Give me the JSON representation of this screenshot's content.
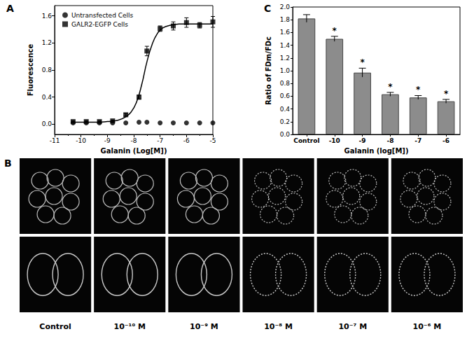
{
  "chart_data": [
    {
      "type": "scatter",
      "title": "A",
      "x_label": "Galanin (Log[M])",
      "y_label": "Fluorescence",
      "xlim": [
        -11,
        -5
      ],
      "xticks": [
        -11,
        -10,
        -9,
        -8,
        -7,
        -6,
        -5
      ],
      "ylim": [
        -0.15,
        1.75
      ],
      "yticks": [
        {
          "value": 0,
          "label": "0.0"
        },
        {
          "value": 0.4,
          "label": "0.4"
        },
        {
          "value": 0.8,
          "label": "0.8"
        },
        {
          "value": 1.2,
          "label": "1.2"
        },
        {
          "value": 1.6,
          "label": "1.6"
        }
      ],
      "legend": "upper left",
      "grid": false,
      "x": [
        -10.3,
        -9.8,
        -9.3,
        -8.8,
        -8.3,
        -7.8,
        -7.5,
        -7.0,
        -6.5,
        -6.0,
        -5.5,
        -5.0
      ],
      "series": [
        {
          "name": "Untransfected Cells",
          "marker": "circle",
          "color": "#000000",
          "values": [
            0.02,
            0.02,
            0.02,
            0.02,
            0.02,
            0.03,
            0.03,
            0.02,
            0.02,
            0.02,
            0.02,
            0.02
          ]
        },
        {
          "name": "GALR2-EGFP Cells",
          "marker": "square",
          "color": "#000000",
          "values": [
            0.04,
            0.04,
            0.04,
            0.05,
            0.14,
            0.4,
            1.08,
            1.41,
            1.45,
            1.5,
            1.46,
            1.51
          ],
          "errors": [
            0.01,
            0.01,
            0.01,
            0.01,
            0.02,
            0.03,
            0.07,
            0.04,
            0.06,
            0.07,
            0.04,
            0.08
          ]
        },
        {
          "type": "line",
          "line_style": "solid",
          "color": "#000000",
          "x": [
            -10.3,
            -9.5,
            -9.0,
            -8.6,
            -8.3,
            -8.1,
            -7.9,
            -7.7,
            -7.5,
            -7.3,
            -7.1,
            -6.9,
            -6.6,
            -6.2,
            -5.6,
            -5.0
          ],
          "values": [
            0.03,
            0.03,
            0.04,
            0.06,
            0.11,
            0.18,
            0.32,
            0.58,
            0.92,
            1.18,
            1.34,
            1.42,
            1.46,
            1.48,
            1.48,
            1.48
          ]
        }
      ]
    },
    {
      "type": "bar",
      "title": "C",
      "x_label": "Galanin (log[M])",
      "y_label": "Ratio of FDm/FDc",
      "categories": [
        "Control",
        "-10",
        "-9",
        "-8",
        "-7",
        "-6"
      ],
      "values": [
        1.82,
        1.5,
        0.97,
        0.63,
        0.58,
        0.52
      ],
      "errors": [
        0.06,
        0.04,
        0.07,
        0.03,
        0.03,
        0.03
      ],
      "annotations": [
        null,
        "*",
        "*",
        "*",
        "*",
        "*"
      ],
      "color": "#8c8c8c",
      "grid": false,
      "ylim": [
        0,
        2
      ],
      "yticks": [
        {
          "value": 0,
          "label": "0.0"
        },
        {
          "value": 0.2,
          "label": "0.2"
        },
        {
          "value": 0.4,
          "label": "0.4"
        },
        {
          "value": 0.6,
          "label": "0.6"
        },
        {
          "value": 0.8,
          "label": "0.8"
        },
        {
          "value": 1,
          "label": "1.0"
        },
        {
          "value": 1.2,
          "label": "1.2"
        },
        {
          "value": 1.4,
          "label": "1.4"
        },
        {
          "value": 1.6,
          "label": "1.6"
        },
        {
          "value": 1.8,
          "label": "1.8"
        },
        {
          "value": 2,
          "label": "2.0"
        }
      ]
    }
  ],
  "images": {
    "title": "B",
    "rows": 2,
    "labels": [
      "Control",
      "10⁻¹⁰ M",
      "10⁻⁹ M",
      "10⁻⁸ M",
      "10⁻⁷ M",
      "10⁻⁶ M"
    ]
  }
}
